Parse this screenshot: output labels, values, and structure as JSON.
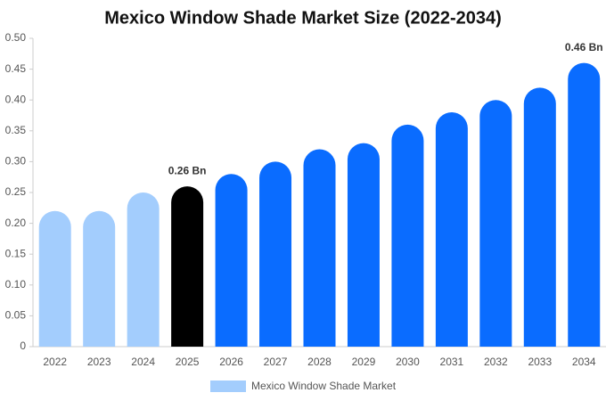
{
  "chart_data": {
    "type": "bar",
    "title": "Mexico Window Shade Market Size (2022-2034)",
    "categories": [
      "2022",
      "2023",
      "2024",
      "2025",
      "2026",
      "2027",
      "2028",
      "2029",
      "2030",
      "2031",
      "2032",
      "2033",
      "2034"
    ],
    "series": [
      {
        "name": "Mexico Window Shade Market",
        "color": "#a3cdfd",
        "values": [
          0.22,
          0.22,
          0.25,
          0.26,
          0.28,
          0.3,
          0.32,
          0.33,
          0.36,
          0.38,
          0.4,
          0.42,
          0.46
        ],
        "value_labels": [
          null,
          null,
          null,
          "0.26 Bn",
          null,
          null,
          null,
          null,
          null,
          null,
          null,
          null,
          "0.46 Bn"
        ],
        "colors": [
          "#a3cdfd",
          "#a3cdfd",
          "#a3cdfd",
          "#000000",
          "#0a6cff",
          "#0a6cff",
          "#0a6cff",
          "#0a6cff",
          "#0a6cff",
          "#0a6cff",
          "#0a6cff",
          "#0a6cff",
          "#0a6cff"
        ]
      }
    ],
    "ylim": [
      0,
      0.5
    ],
    "yticks": [
      0,
      0.05,
      {
        "value": 0.1,
        "label": "0.10"
      },
      0.15,
      {
        "value": 0.2,
        "label": "0.20"
      },
      0.25,
      {
        "value": 0.3,
        "label": "0.30"
      },
      0.35,
      {
        "value": 0.4,
        "label": "0.40"
      },
      0.45,
      {
        "value": 0.5,
        "label": "0.50"
      }
    ],
    "grid": false
  }
}
